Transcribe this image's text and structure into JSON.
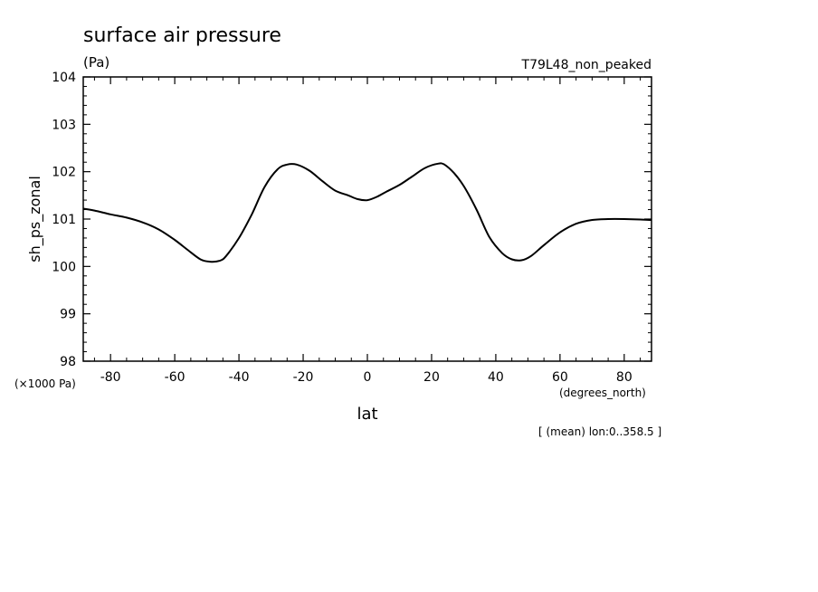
{
  "chart_data": {
    "type": "line",
    "title": "surface air pressure",
    "units": "(Pa)",
    "run_label": "T79L48_non_peaked",
    "ylabel": "sh_ps_zonal",
    "xlabel": "lat",
    "x_units": "(degrees_north)",
    "y_scale_label": "(×1000 Pa)",
    "footnote": "[ (mean) lon:0..358.5 ]",
    "xlim": [
      -88.5,
      88.5
    ],
    "ylim": [
      98,
      104
    ],
    "x_ticks": [
      -80,
      -60,
      -40,
      -20,
      0,
      20,
      40,
      60,
      80
    ],
    "x_tick_labels": [
      "-80",
      "-60",
      "-40",
      "-20",
      "0",
      "20",
      "40",
      "60",
      "80"
    ],
    "y_ticks": [
      98,
      99,
      100,
      101,
      102,
      103,
      104
    ],
    "y_tick_labels": [
      "98",
      "99",
      "100",
      "101",
      "102",
      "103",
      "104"
    ],
    "grid": false,
    "series": [
      {
        "x": [
          -88.5,
          -85,
          -80,
          -75,
          -70,
          -65,
          -60,
          -56,
          -52,
          -49,
          -46,
          -44,
          -40,
          -36,
          -32,
          -28,
          -25,
          -22,
          -18,
          -14,
          -10,
          -6,
          -3,
          0,
          3,
          6,
          10,
          14,
          18,
          22,
          24,
          27,
          30,
          34,
          38,
          42,
          45,
          48,
          51,
          55,
          60,
          65,
          70,
          75,
          80,
          85,
          88.5
        ],
        "y": [
          101.22,
          101.18,
          101.1,
          101.03,
          100.93,
          100.78,
          100.56,
          100.35,
          100.15,
          100.1,
          100.12,
          100.22,
          100.6,
          101.1,
          101.68,
          102.05,
          102.15,
          102.15,
          102.02,
          101.8,
          101.6,
          101.5,
          101.42,
          101.4,
          101.47,
          101.58,
          101.72,
          101.9,
          102.08,
          102.17,
          102.15,
          101.97,
          101.7,
          101.2,
          100.62,
          100.28,
          100.15,
          100.13,
          100.22,
          100.45,
          100.72,
          100.9,
          100.98,
          101.0,
          101.0,
          100.99,
          100.98
        ]
      }
    ]
  }
}
